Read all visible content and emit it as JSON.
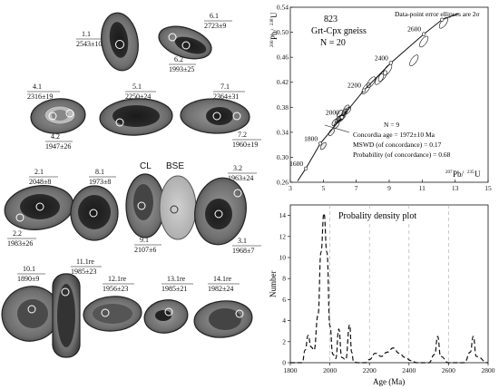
{
  "figure": {
    "grains": [
      {
        "id": "1.1",
        "age": "2543±10"
      },
      {
        "id": "6.1",
        "age": "2723±9"
      },
      {
        "id": "6.2",
        "age": "1993±25"
      },
      {
        "id": "4.1",
        "age": "2316±19"
      },
      {
        "id": "4.2",
        "age": "1947±26"
      },
      {
        "id": "5.1",
        "age": "2250±24"
      },
      {
        "id": "7.1",
        "age": "2364±31"
      },
      {
        "id": "7.2",
        "age": "1960±19"
      },
      {
        "id": "2.1",
        "age": "2048±8"
      },
      {
        "id": "2.2",
        "age": "1983±26"
      },
      {
        "id": "8.1",
        "age": "1973±8"
      },
      {
        "id": "9.1",
        "age": "2107±6"
      },
      {
        "id": "3.2",
        "age": "1963±24"
      },
      {
        "id": "3.1",
        "age": "1968±7"
      },
      {
        "id": "10.1",
        "age": "1890±9"
      },
      {
        "id": "11.1re",
        "age": "1985±23"
      },
      {
        "id": "12.1re",
        "age": "1956±23"
      },
      {
        "id": "13.1re",
        "age": "1985±21"
      },
      {
        "id": "14.1re",
        "age": "1982±24"
      }
    ],
    "image_labels": {
      "cl": "CL",
      "bse": "BSE"
    }
  },
  "concordia": {
    "sample": "823",
    "rock": "Grt-Cpx gneiss",
    "n_total": "N = 20",
    "note": "Data-point error ellipses are 2σ",
    "y_axis_label_iso1": "206",
    "y_axis_label_pb": "Pb/",
    "y_axis_label_iso2": "238",
    "y_axis_label_u": "U",
    "x_axis_label_iso1": "207",
    "x_axis_label_pb": "Pb/",
    "x_axis_label_iso2": "235",
    "x_axis_label_u": "U",
    "stats": {
      "n": "N = 9",
      "age": "Concordia age = 1972±10 Ma",
      "mswd": "MSWD (of concordance) = 0.17",
      "prob": "Probability (of concordance) = 0.68"
    },
    "age_marks": [
      "1600",
      "1800",
      "2000",
      "2200",
      "2400",
      "2600"
    ]
  },
  "chart_data": [
    {
      "type": "scatter",
      "title": "",
      "xlabel": "207Pb/235U",
      "ylabel": "206Pb/238U",
      "xlim": [
        3,
        15
      ],
      "ylim": [
        0.26,
        0.54
      ],
      "x_ticks": [
        3,
        5,
        7,
        9,
        11,
        13,
        15
      ],
      "y_ticks": [
        0.26,
        0.3,
        0.34,
        0.38,
        0.42,
        0.46,
        0.5,
        0.54
      ],
      "concordia_points": [
        {
          "age": 1600,
          "x": 3.94,
          "y": 0.282
        },
        {
          "age": 1800,
          "x": 4.82,
          "y": 0.322
        },
        {
          "age": 2000,
          "x": 6.13,
          "y": 0.364
        },
        {
          "age": 2200,
          "x": 7.46,
          "y": 0.407
        },
        {
          "age": 2400,
          "x": 9.1,
          "y": 0.451
        },
        {
          "age": 2600,
          "x": 11.1,
          "y": 0.497
        },
        {
          "age": 2700,
          "x": 12.2,
          "y": 0.52
        }
      ],
      "ellipses": [
        {
          "x": 5.7,
          "y": 0.356
        },
        {
          "x": 5.9,
          "y": 0.36
        },
        {
          "x": 6.0,
          "y": 0.362
        },
        {
          "x": 6.1,
          "y": 0.363
        },
        {
          "x": 6.2,
          "y": 0.366
        },
        {
          "x": 6.0,
          "y": 0.37
        },
        {
          "x": 5.8,
          "y": 0.352
        },
        {
          "x": 6.3,
          "y": 0.372
        },
        {
          "x": 5.5,
          "y": 0.34
        },
        {
          "x": 5.0,
          "y": 0.318
        },
        {
          "x": 6.4,
          "y": 0.378
        },
        {
          "x": 7.6,
          "y": 0.41
        },
        {
          "x": 8.4,
          "y": 0.425
        },
        {
          "x": 8.6,
          "y": 0.43
        },
        {
          "x": 8.9,
          "y": 0.44
        },
        {
          "x": 10.5,
          "y": 0.455
        },
        {
          "x": 11.1,
          "y": 0.485
        },
        {
          "x": 12.3,
          "y": 0.515
        },
        {
          "x": 6.5,
          "y": 0.375
        },
        {
          "x": 7.9,
          "y": 0.42
        }
      ]
    },
    {
      "type": "line",
      "title": "Probality density plot",
      "xlabel": "Age (Ma)",
      "ylabel": "Number",
      "xlim": [
        1800,
        2800
      ],
      "ylim": [
        0,
        15
      ],
      "x_ticks": [
        1800,
        2000,
        2200,
        2400,
        2600,
        2800
      ],
      "y_ticks": [
        0,
        2,
        4,
        6,
        8,
        10,
        12,
        14
      ],
      "x": [
        1800,
        1860,
        1875,
        1890,
        1905,
        1920,
        1940,
        1955,
        1970,
        1985,
        2000,
        2015,
        2030,
        2045,
        2060,
        2080,
        2100,
        2110,
        2120,
        2140,
        2180,
        2200,
        2230,
        2260,
        2290,
        2320,
        2350,
        2380,
        2410,
        2440,
        2500,
        2530,
        2545,
        2560,
        2600,
        2680,
        2710,
        2725,
        2740,
        2800
      ],
      "values": [
        0,
        0,
        1.2,
        2.6,
        1.5,
        1.2,
        4.5,
        10.5,
        14.2,
        10.5,
        3.5,
        0.8,
        0.4,
        3.2,
        0.5,
        0.3,
        3.6,
        1.0,
        0.1,
        0,
        0,
        0.3,
        0.9,
        0.6,
        1.0,
        1.4,
        0.9,
        0.5,
        0.2,
        0,
        0,
        0.8,
        2.5,
        0.6,
        0,
        0,
        1.0,
        2.5,
        0.6,
        0
      ],
      "dashed_gridlines_x": [
        2000,
        2200,
        2400,
        2600
      ]
    }
  ]
}
